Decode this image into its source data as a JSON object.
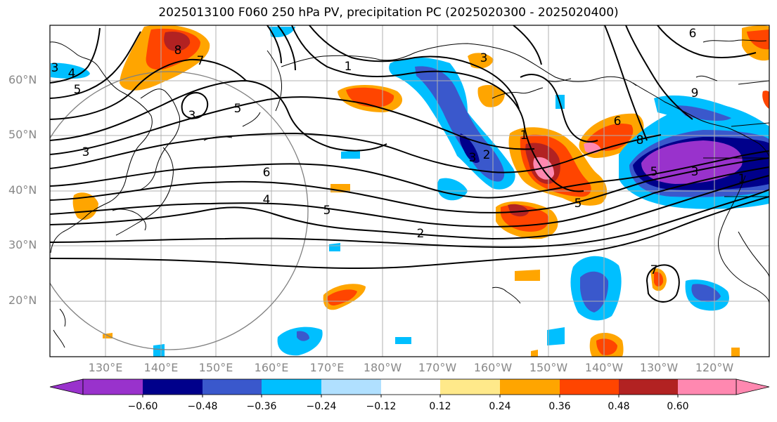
{
  "title": "2025013100 F060 250 hPa PV, precipitation PC (2025020300 - 2025020400)",
  "map": {
    "lat_labels": [
      "60°N",
      "50°N",
      "40°N",
      "30°N",
      "20°N"
    ],
    "lon_labels": [
      "130°E",
      "140°E",
      "150°E",
      "160°E",
      "170°E",
      "180°W",
      "170°W",
      "160°W",
      "150°W",
      "140°W",
      "130°W",
      "120°W"
    ],
    "contour_labels": [
      "8",
      "7",
      "5",
      "4",
      "3",
      "3",
      "5",
      "6",
      "4",
      "5",
      "2",
      "1",
      "3",
      "2",
      "3",
      "1",
      "6",
      "8",
      "5",
      "3",
      "1",
      "6",
      "9",
      "7",
      "3",
      "5"
    ]
  },
  "colorbar": {
    "ticks": [
      "−0.60",
      "−0.48",
      "−0.36",
      "−0.24",
      "−0.12",
      "0.12",
      "0.24",
      "0.36",
      "0.48",
      "0.60"
    ],
    "colors": [
      "#9932cc",
      "#00008b",
      "#3a58cc",
      "#00bfff",
      "#b0e0ff",
      "#ffffff",
      "#ffe98a",
      "#ffa500",
      "#ff4500",
      "#b22222",
      "#ff88b0"
    ]
  }
}
